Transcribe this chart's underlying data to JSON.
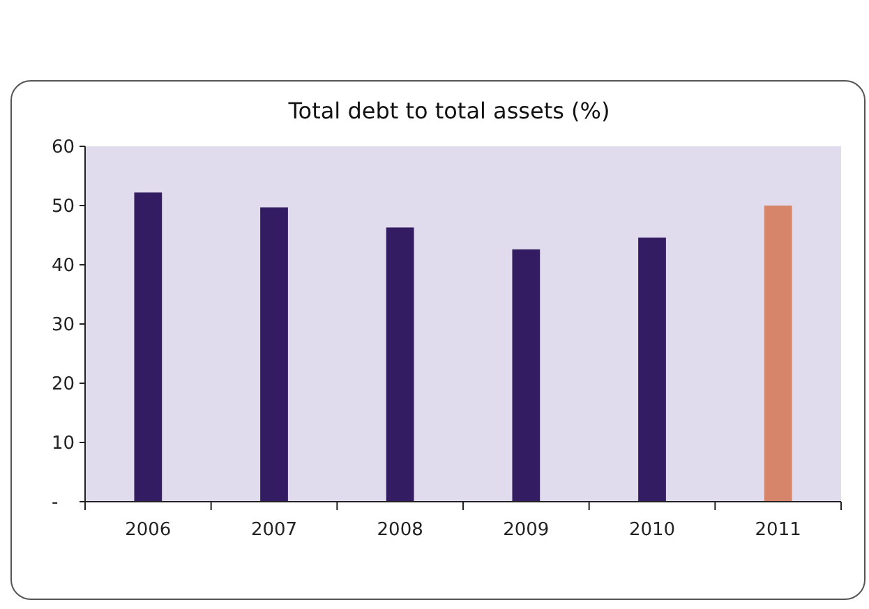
{
  "chart_data": {
    "type": "bar",
    "title": "Total debt to total assets (%)",
    "categories": [
      "2006",
      "2007",
      "2008",
      "2009",
      "2010",
      "2011"
    ],
    "values": [
      52.2,
      49.7,
      46.3,
      42.6,
      44.6,
      50.0
    ],
    "colors": [
      "#331c61",
      "#331c61",
      "#331c61",
      "#331c61",
      "#331c61",
      "#d6846a"
    ],
    "ylim": [
      0,
      60
    ],
    "yticks": [
      {
        "value": 0,
        "label": "-"
      },
      10,
      20,
      30,
      40,
      50,
      60
    ],
    "grid": false
  }
}
